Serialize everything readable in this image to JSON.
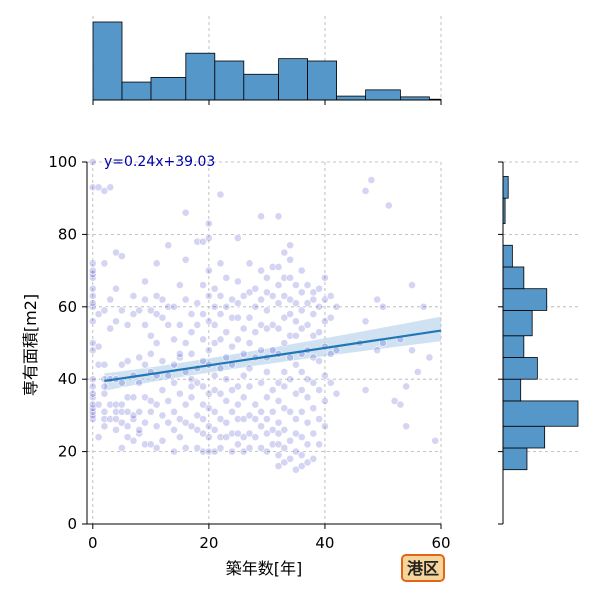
{
  "chart_data": {
    "type": "scatter",
    "xlabel": "築年数[年]",
    "ylabel": "専有面積[m2]",
    "xlim": [
      -1,
      60
    ],
    "ylim": [
      0,
      100
    ],
    "xticks": [
      0,
      20,
      40,
      60
    ],
    "yticks": [
      0,
      20,
      40,
      60,
      80,
      100
    ],
    "grid": true,
    "annotation": "y=0.24x+39.03",
    "badge": "港区",
    "colors": {
      "point": "#3a3ac8",
      "fit_line": "#1f77b4",
      "band": "#a9cbe8",
      "hist": "#5597c8",
      "badge_fill": "#f5d59a",
      "badge_border": "#e2661a"
    },
    "fit": {
      "slope": 0.24,
      "intercept": 39.03,
      "band_start": [
        36.8,
        41.6
      ],
      "band_end": [
        50.5,
        57.3
      ]
    },
    "hist_x": {
      "bins": [
        [
          0,
          5
        ],
        [
          5,
          10
        ],
        [
          10,
          16
        ],
        [
          16,
          21
        ],
        [
          21,
          26
        ],
        [
          26,
          32
        ],
        [
          32,
          37
        ],
        [
          37,
          42
        ],
        [
          42,
          47
        ],
        [
          47,
          53
        ],
        [
          53,
          58
        ],
        [
          58,
          60
        ]
      ],
      "counts": [
        100,
        23,
        29,
        60,
        50,
        33,
        53,
        50,
        5,
        13,
        4,
        1
      ]
    },
    "hist_y": {
      "bins": [
        [
          15,
          21
        ],
        [
          21,
          27
        ],
        [
          27,
          34
        ],
        [
          34,
          40
        ],
        [
          40,
          46
        ],
        [
          46,
          52
        ],
        [
          52,
          59
        ],
        [
          59,
          65
        ],
        [
          65,
          71
        ],
        [
          71,
          77
        ],
        [
          77,
          83
        ],
        [
          83,
          90
        ],
        [
          90,
          96
        ]
      ],
      "counts": [
        23,
        40,
        72,
        17,
        33,
        20,
        28,
        42,
        20,
        9,
        0,
        2,
        5
      ]
    },
    "points": [
      [
        0,
        29
      ],
      [
        0,
        30
      ],
      [
        0,
        31
      ],
      [
        0,
        32
      ],
      [
        0,
        33
      ],
      [
        0,
        35
      ],
      [
        0,
        36
      ],
      [
        0,
        38
      ],
      [
        0,
        40
      ],
      [
        0,
        48
      ],
      [
        0,
        50
      ],
      [
        0,
        56
      ],
      [
        0,
        60
      ],
      [
        0,
        61
      ],
      [
        0,
        63
      ],
      [
        0,
        65
      ],
      [
        0,
        68
      ],
      [
        0,
        69
      ],
      [
        0,
        70
      ],
      [
        0,
        72
      ],
      [
        0,
        93
      ],
      [
        0,
        100
      ],
      [
        1,
        24
      ],
      [
        1,
        33
      ],
      [
        1,
        44
      ],
      [
        1,
        49
      ],
      [
        1,
        58
      ],
      [
        1,
        93
      ],
      [
        2,
        27
      ],
      [
        2,
        29
      ],
      [
        2,
        31
      ],
      [
        2,
        36
      ],
      [
        2,
        38
      ],
      [
        2,
        40
      ],
      [
        2,
        44
      ],
      [
        2,
        59
      ],
      [
        2,
        72
      ],
      [
        2,
        92
      ],
      [
        3,
        29
      ],
      [
        3,
        33
      ],
      [
        3,
        40
      ],
      [
        3,
        54
      ],
      [
        3,
        62
      ],
      [
        3,
        93
      ],
      [
        4,
        26
      ],
      [
        4,
        29
      ],
      [
        4,
        31
      ],
      [
        4,
        33
      ],
      [
        4,
        40
      ],
      [
        4,
        56
      ],
      [
        4,
        65
      ],
      [
        4,
        75
      ],
      [
        5,
        21
      ],
      [
        5,
        28
      ],
      [
        5,
        31
      ],
      [
        5,
        33
      ],
      [
        5,
        39
      ],
      [
        5,
        44
      ],
      [
        5,
        59
      ],
      [
        5,
        74
      ],
      [
        6,
        24
      ],
      [
        6,
        27
      ],
      [
        6,
        31
      ],
      [
        6,
        35
      ],
      [
        6,
        45
      ],
      [
        6,
        55
      ],
      [
        7,
        23
      ],
      [
        7,
        29
      ],
      [
        7,
        30
      ],
      [
        7,
        35
      ],
      [
        7,
        41
      ],
      [
        7,
        58
      ],
      [
        7,
        63
      ],
      [
        8,
        25
      ],
      [
        8,
        26
      ],
      [
        8,
        31
      ],
      [
        8,
        39
      ],
      [
        8,
        46
      ],
      [
        8,
        59
      ],
      [
        9,
        22
      ],
      [
        9,
        28
      ],
      [
        9,
        35
      ],
      [
        9,
        44
      ],
      [
        9,
        55
      ],
      [
        9,
        62
      ],
      [
        9,
        67
      ],
      [
        10,
        22
      ],
      [
        10,
        31
      ],
      [
        10,
        34
      ],
      [
        10,
        42
      ],
      [
        10,
        47
      ],
      [
        10,
        52
      ],
      [
        10,
        59
      ],
      [
        11,
        21
      ],
      [
        11,
        27
      ],
      [
        11,
        33
      ],
      [
        11,
        41
      ],
      [
        11,
        50
      ],
      [
        11,
        58
      ],
      [
        11,
        63
      ],
      [
        11,
        72
      ],
      [
        12,
        23
      ],
      [
        12,
        30
      ],
      [
        12,
        37
      ],
      [
        12,
        45
      ],
      [
        12,
        57
      ],
      [
        12,
        62
      ],
      [
        13,
        28
      ],
      [
        13,
        34
      ],
      [
        13,
        41
      ],
      [
        13,
        55
      ],
      [
        13,
        60
      ],
      [
        13,
        77
      ],
      [
        14,
        20
      ],
      [
        14,
        26
      ],
      [
        14,
        31
      ],
      [
        14,
        39
      ],
      [
        14,
        44
      ],
      [
        14,
        51
      ],
      [
        14,
        60
      ],
      [
        15,
        24
      ],
      [
        15,
        29
      ],
      [
        15,
        36
      ],
      [
        15,
        46
      ],
      [
        15,
        47
      ],
      [
        15,
        55
      ],
      [
        15,
        66
      ],
      [
        16,
        21
      ],
      [
        16,
        28
      ],
      [
        16,
        33
      ],
      [
        16,
        42
      ],
      [
        16,
        50
      ],
      [
        16,
        62
      ],
      [
        16,
        73
      ],
      [
        16,
        86
      ],
      [
        17,
        27
      ],
      [
        17,
        35
      ],
      [
        17,
        38
      ],
      [
        17,
        40
      ],
      [
        17,
        47
      ],
      [
        17,
        53
      ],
      [
        17,
        58
      ],
      [
        18,
        21
      ],
      [
        18,
        26
      ],
      [
        18,
        30
      ],
      [
        18,
        39
      ],
      [
        18,
        43
      ],
      [
        18,
        55
      ],
      [
        18,
        61
      ],
      [
        18,
        78
      ],
      [
        19,
        20
      ],
      [
        19,
        25
      ],
      [
        19,
        29
      ],
      [
        19,
        33
      ],
      [
        19,
        38
      ],
      [
        19,
        45
      ],
      [
        19,
        51
      ],
      [
        19,
        58
      ],
      [
        19,
        66
      ],
      [
        19,
        78
      ],
      [
        20,
        20
      ],
      [
        20,
        24
      ],
      [
        20,
        27
      ],
      [
        20,
        32
      ],
      [
        20,
        36
      ],
      [
        20,
        44
      ],
      [
        20,
        48
      ],
      [
        20,
        56
      ],
      [
        20,
        63
      ],
      [
        20,
        70
      ],
      [
        20,
        79
      ],
      [
        20,
        83
      ],
      [
        21,
        20
      ],
      [
        21,
        26
      ],
      [
        21,
        31
      ],
      [
        21,
        37
      ],
      [
        21,
        41
      ],
      [
        21,
        50
      ],
      [
        21,
        55
      ],
      [
        21,
        60
      ],
      [
        21,
        65
      ],
      [
        22,
        21
      ],
      [
        22,
        24
      ],
      [
        22,
        29
      ],
      [
        22,
        36
      ],
      [
        22,
        43
      ],
      [
        22,
        51
      ],
      [
        22,
        58
      ],
      [
        22,
        63
      ],
      [
        22,
        72
      ],
      [
        22,
        91
      ],
      [
        23,
        24
      ],
      [
        23,
        28
      ],
      [
        23,
        34
      ],
      [
        23,
        40
      ],
      [
        23,
        46
      ],
      [
        23,
        53
      ],
      [
        23,
        60
      ],
      [
        23,
        68
      ],
      [
        24,
        20
      ],
      [
        24,
        25
      ],
      [
        24,
        31
      ],
      [
        24,
        37
      ],
      [
        24,
        44
      ],
      [
        24,
        49
      ],
      [
        24,
        57
      ],
      [
        24,
        62
      ],
      [
        25,
        22
      ],
      [
        25,
        25
      ],
      [
        25,
        29
      ],
      [
        25,
        33
      ],
      [
        25,
        38
      ],
      [
        25,
        51
      ],
      [
        25,
        57
      ],
      [
        25,
        61
      ],
      [
        25,
        67
      ],
      [
        25,
        79
      ],
      [
        26,
        20
      ],
      [
        26,
        24
      ],
      [
        26,
        29
      ],
      [
        26,
        35
      ],
      [
        26,
        41
      ],
      [
        26,
        47
      ],
      [
        26,
        54
      ],
      [
        26,
        63
      ],
      [
        27,
        21
      ],
      [
        27,
        25
      ],
      [
        27,
        30
      ],
      [
        27,
        38
      ],
      [
        27,
        43
      ],
      [
        27,
        50
      ],
      [
        27,
        57
      ],
      [
        27,
        64
      ],
      [
        27,
        72
      ],
      [
        28,
        24
      ],
      [
        28,
        29
      ],
      [
        28,
        33
      ],
      [
        28,
        46
      ],
      [
        28,
        53
      ],
      [
        28,
        60
      ],
      [
        28,
        65
      ],
      [
        29,
        21
      ],
      [
        29,
        27
      ],
      [
        29,
        31
      ],
      [
        29,
        39
      ],
      [
        29,
        48
      ],
      [
        29,
        55
      ],
      [
        29,
        62
      ],
      [
        29,
        70
      ],
      [
        29,
        85
      ],
      [
        30,
        20
      ],
      [
        30,
        25
      ],
      [
        30,
        29
      ],
      [
        30,
        35
      ],
      [
        30,
        42
      ],
      [
        30,
        46
      ],
      [
        30,
        54
      ],
      [
        30,
        59
      ],
      [
        30,
        64
      ],
      [
        30,
        68
      ],
      [
        31,
        22
      ],
      [
        31,
        26
      ],
      [
        31,
        31
      ],
      [
        31,
        37
      ],
      [
        31,
        48
      ],
      [
        31,
        55
      ],
      [
        31,
        63
      ],
      [
        31,
        71
      ],
      [
        32,
        16
      ],
      [
        32,
        19
      ],
      [
        32,
        22
      ],
      [
        32,
        25
      ],
      [
        32,
        28
      ],
      [
        32,
        34
      ],
      [
        32,
        39
      ],
      [
        32,
        47
      ],
      [
        32,
        54
      ],
      [
        32,
        61
      ],
      [
        32,
        66
      ],
      [
        32,
        71
      ],
      [
        32,
        85
      ],
      [
        33,
        17
      ],
      [
        33,
        21
      ],
      [
        33,
        26
      ],
      [
        33,
        32
      ],
      [
        33,
        38
      ],
      [
        33,
        42
      ],
      [
        33,
        50
      ],
      [
        33,
        57
      ],
      [
        33,
        63
      ],
      [
        33,
        68
      ],
      [
        33,
        75
      ],
      [
        34,
        18
      ],
      [
        34,
        23
      ],
      [
        34,
        31
      ],
      [
        34,
        40
      ],
      [
        34,
        46
      ],
      [
        34,
        52
      ],
      [
        34,
        58
      ],
      [
        34,
        62
      ],
      [
        34,
        68
      ],
      [
        34,
        73
      ],
      [
        34,
        77
      ],
      [
        35,
        15
      ],
      [
        35,
        20
      ],
      [
        35,
        25
      ],
      [
        35,
        29
      ],
      [
        35,
        36
      ],
      [
        35,
        44
      ],
      [
        35,
        52
      ],
      [
        35,
        56
      ],
      [
        35,
        61
      ],
      [
        35,
        66
      ],
      [
        36,
        16
      ],
      [
        36,
        19
      ],
      [
        36,
        24
      ],
      [
        36,
        31
      ],
      [
        36,
        37
      ],
      [
        36,
        42
      ],
      [
        36,
        47
      ],
      [
        36,
        54
      ],
      [
        36,
        59
      ],
      [
        36,
        64
      ],
      [
        36,
        70
      ],
      [
        37,
        17
      ],
      [
        37,
        22
      ],
      [
        37,
        28
      ],
      [
        37,
        35
      ],
      [
        37,
        40
      ],
      [
        37,
        48
      ],
      [
        37,
        55
      ],
      [
        37,
        61
      ],
      [
        37,
        66
      ],
      [
        38,
        18
      ],
      [
        38,
        25
      ],
      [
        38,
        32
      ],
      [
        38,
        39
      ],
      [
        38,
        46
      ],
      [
        38,
        52
      ],
      [
        38,
        58
      ],
      [
        38,
        62
      ],
      [
        38,
        64
      ],
      [
        39,
        22
      ],
      [
        39,
        29
      ],
      [
        39,
        37
      ],
      [
        39,
        45
      ],
      [
        39,
        53
      ],
      [
        39,
        60
      ],
      [
        39,
        65
      ],
      [
        40,
        27
      ],
      [
        40,
        34
      ],
      [
        40,
        41
      ],
      [
        40,
        49
      ],
      [
        40,
        56
      ],
      [
        40,
        62
      ],
      [
        40,
        68
      ],
      [
        41,
        39
      ],
      [
        41,
        47
      ],
      [
        41,
        57
      ],
      [
        41,
        63
      ],
      [
        42,
        36
      ],
      [
        42,
        48
      ],
      [
        42,
        60
      ],
      [
        46,
        50
      ],
      [
        47,
        37
      ],
      [
        47,
        56
      ],
      [
        47,
        92
      ],
      [
        48,
        95
      ],
      [
        49,
        62
      ],
      [
        49,
        48
      ],
      [
        50,
        60
      ],
      [
        50,
        50
      ],
      [
        51,
        88
      ],
      [
        52,
        34
      ],
      [
        53,
        33
      ],
      [
        53,
        51
      ],
      [
        54,
        38
      ],
      [
        54,
        27
      ],
      [
        55,
        48
      ],
      [
        55,
        66
      ],
      [
        56,
        42
      ],
      [
        57,
        60
      ],
      [
        58,
        46
      ],
      [
        59,
        23
      ]
    ]
  }
}
